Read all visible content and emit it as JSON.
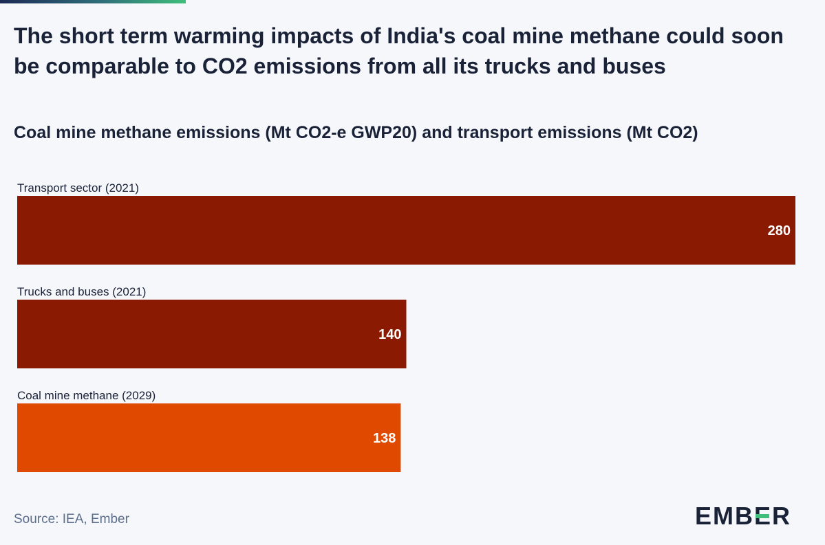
{
  "chart_data": {
    "type": "bar",
    "orientation": "horizontal",
    "title": "The short term warming impacts of India's coal mine methane could soon be comparable to CO2 emissions from all its trucks and buses",
    "subtitle": "Coal mine methane emissions (Mt CO2-e GWP20) and transport emissions (Mt CO2)",
    "categories": [
      "Transport sector (2021)",
      "Trucks and buses (2021)",
      "Coal mine methane (2029)"
    ],
    "values": [
      280,
      140,
      138
    ],
    "colors": [
      "#8b1a03",
      "#8b1a03",
      "#e04a00"
    ],
    "xlim": [
      0,
      280
    ],
    "grid": false,
    "legend": "none"
  },
  "source": "Source: IEA, Ember",
  "logo": {
    "pre": "EMB",
    "mid": "E",
    "post": "R"
  },
  "colors": {
    "label_text": "#ffffff",
    "category_text": "#1a2238",
    "accent": "#3fbf7a"
  }
}
